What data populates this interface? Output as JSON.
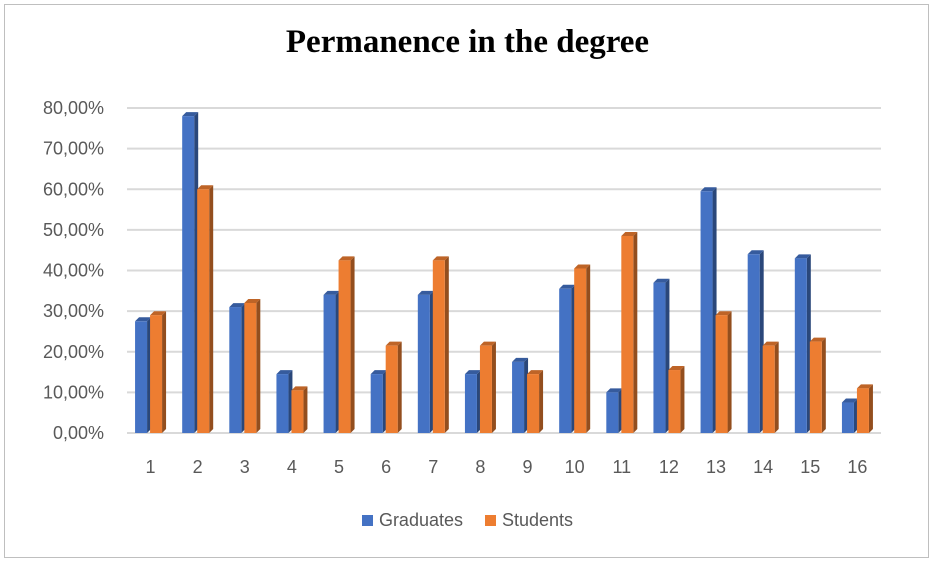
{
  "chart_data": {
    "type": "bar",
    "title": "Permanence in the degree",
    "xlabel": "",
    "ylabel": "",
    "categories": [
      "1",
      "2",
      "3",
      "4",
      "5",
      "6",
      "7",
      "8",
      "9",
      "10",
      "11",
      "12",
      "13",
      "14",
      "15",
      "16"
    ],
    "series": [
      {
        "name": "Graduates",
        "color": "#4472C4",
        "values": [
          27.5,
          78.0,
          31.0,
          14.5,
          34.0,
          14.5,
          34.0,
          14.5,
          17.5,
          35.5,
          10.0,
          37.0,
          59.5,
          44.0,
          43.0,
          7.5
        ]
      },
      {
        "name": "Students",
        "color": "#ED7D31",
        "values": [
          29.0,
          60.0,
          32.0,
          10.5,
          42.5,
          21.5,
          42.5,
          21.5,
          14.5,
          40.5,
          48.5,
          15.5,
          29.0,
          21.5,
          22.5,
          11.0
        ]
      }
    ],
    "ylim": [
      0,
      80
    ],
    "yticks": [
      "0,00%",
      "10,00%",
      "20,00%",
      "30,00%",
      "40,00%",
      "50,00%",
      "60,00%",
      "70,00%",
      "80,00%"
    ],
    "grid": true,
    "legend_position": "bottom"
  }
}
